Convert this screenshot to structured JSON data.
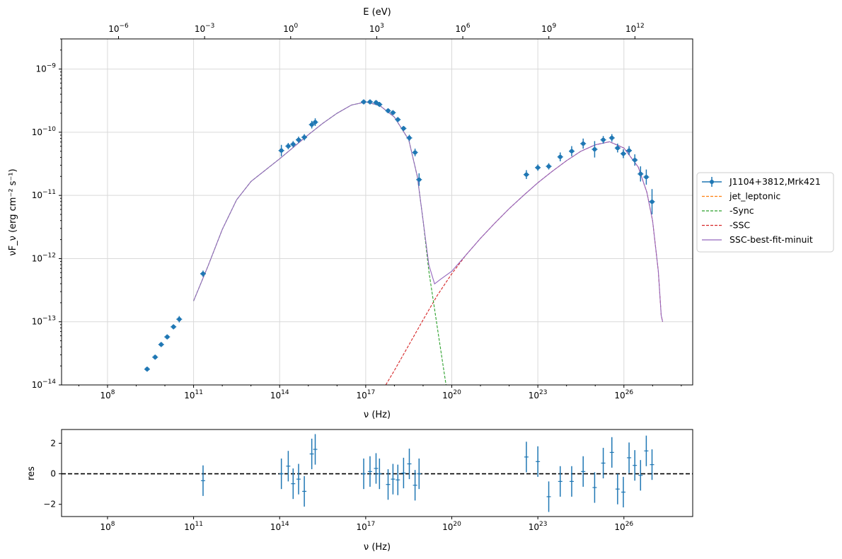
{
  "chart_data": [
    {
      "type": "line",
      "panel": "sed",
      "xlabel": "ν  (Hz)",
      "ylabel": "νF_ν  (erg cm⁻²  s⁻¹)",
      "top_xlabel": "E (eV)",
      "x_scale": "log",
      "y_scale": "log",
      "xlim": [
        2500000.0,
        2.5e+28
      ],
      "ylim": [
        1e-14,
        3e-09
      ],
      "grid": true,
      "legend_position": "outside-right",
      "x_ticks": [
        "10^8",
        "10^11",
        "10^14",
        "10^17",
        "10^20",
        "10^23",
        "10^26"
      ],
      "y_ticks": [
        "10^-14",
        "10^-13",
        "10^-12",
        "10^-11",
        "10^-10",
        "10^-9"
      ],
      "top_ticks": [
        "10^-6",
        "10^-3",
        "10^0",
        "10^3",
        "10^6",
        "10^9",
        "10^12"
      ],
      "legend": [
        {
          "label": "J1104+3812,Mrk421",
          "color": "#1f77b4",
          "style": "errorbar"
        },
        {
          "label": "jet_leptonic",
          "color": "#ff7f0e",
          "style": "dashed"
        },
        {
          "label": "  -Sync",
          "color": "#2ca02c",
          "style": "dashed"
        },
        {
          "label": "  -SSC",
          "color": "#d62728",
          "style": "dashed"
        },
        {
          "label": "SSC-best-fit-minuit",
          "color": "#9467bd",
          "style": "solid"
        }
      ],
      "series": [
        {
          "name": "J1104+3812,Mrk421",
          "color": "#1f77b4",
          "points": [
            [
              9.38,
              -13.75
            ],
            [
              9.66,
              -13.56
            ],
            [
              9.87,
              -13.36
            ],
            [
              10.08,
              -13.24
            ],
            [
              10.3,
              -13.08
            ],
            [
              10.5,
              -12.96
            ],
            [
              11.33,
              -12.24
            ],
            [
              14.06,
              -10.29
            ],
            [
              14.3,
              -10.22
            ],
            [
              14.47,
              -10.19
            ],
            [
              14.66,
              -10.12
            ],
            [
              14.86,
              -10.08
            ],
            [
              15.12,
              -9.88
            ],
            [
              15.24,
              -9.84
            ],
            [
              16.93,
              -9.52
            ],
            [
              17.15,
              -9.52
            ],
            [
              17.36,
              -9.53
            ],
            [
              17.48,
              -9.56
            ],
            [
              17.78,
              -9.66
            ],
            [
              17.95,
              -9.69
            ],
            [
              18.12,
              -9.8
            ],
            [
              18.32,
              -9.94
            ],
            [
              18.52,
              -10.09
            ],
            [
              18.72,
              -10.32
            ],
            [
              18.86,
              -10.75
            ],
            [
              22.6,
              -10.67
            ],
            [
              23.0,
              -10.56
            ],
            [
              23.38,
              -10.54
            ],
            [
              23.78,
              -10.39
            ],
            [
              24.18,
              -10.3
            ],
            [
              24.58,
              -10.18
            ],
            [
              24.98,
              -10.27
            ],
            [
              25.28,
              -10.12
            ],
            [
              25.58,
              -10.09
            ],
            [
              25.78,
              -10.25
            ],
            [
              25.98,
              -10.34
            ],
            [
              26.18,
              -10.29
            ],
            [
              26.38,
              -10.44
            ],
            [
              26.58,
              -10.66
            ],
            [
              26.78,
              -10.71
            ],
            [
              26.98,
              -11.1
            ]
          ],
          "y_err": [
            0.04,
            0.04,
            0.04,
            0.04,
            0.04,
            0.05,
            0.05,
            0.09,
            0.05,
            0.05,
            0.05,
            0.05,
            0.06,
            0.06,
            0.04,
            0.04,
            0.04,
            0.04,
            0.04,
            0.04,
            0.04,
            0.04,
            0.05,
            0.06,
            0.1,
            0.07,
            0.05,
            0.05,
            0.07,
            0.08,
            0.08,
            0.13,
            0.06,
            0.06,
            0.07,
            0.07,
            0.07,
            0.09,
            0.12,
            0.12,
            0.2
          ]
        },
        {
          "name": "  -Sync",
          "color": "#2ca02c",
          "points": [
            [
              11.0,
              -12.67
            ],
            [
              11.5,
              -12.12
            ],
            [
              12.0,
              -11.54
            ],
            [
              12.5,
              -11.07
            ],
            [
              13.0,
              -10.78
            ],
            [
              13.5,
              -10.6
            ],
            [
              14.0,
              -10.42
            ],
            [
              14.5,
              -10.23
            ],
            [
              15.0,
              -10.04
            ],
            [
              15.5,
              -9.86
            ],
            [
              16.0,
              -9.7
            ],
            [
              16.5,
              -9.57
            ],
            [
              17.0,
              -9.52
            ],
            [
              17.5,
              -9.58
            ],
            [
              18.0,
              -9.76
            ],
            [
              18.5,
              -10.12
            ],
            [
              18.8,
              -10.7
            ],
            [
              19.0,
              -11.4
            ],
            [
              19.2,
              -12.2
            ],
            [
              19.5,
              -13.1
            ],
            [
              19.7,
              -13.7
            ],
            [
              19.8,
              -14.0
            ]
          ]
        },
        {
          "name": "  -SSC",
          "color": "#d62728",
          "points": [
            [
              17.7,
              -14.0
            ],
            [
              18.0,
              -13.77
            ],
            [
              18.5,
              -13.37
            ],
            [
              19.0,
              -12.97
            ],
            [
              19.5,
              -12.58
            ],
            [
              20.0,
              -12.24
            ],
            [
              20.5,
              -11.94
            ],
            [
              21.0,
              -11.68
            ],
            [
              21.5,
              -11.44
            ],
            [
              22.0,
              -11.21
            ],
            [
              22.5,
              -11.0
            ],
            [
              23.0,
              -10.8
            ],
            [
              23.5,
              -10.62
            ],
            [
              24.0,
              -10.45
            ],
            [
              24.5,
              -10.3
            ],
            [
              25.0,
              -10.2
            ],
            [
              25.5,
              -10.15
            ],
            [
              26.0,
              -10.25
            ],
            [
              26.5,
              -10.55
            ],
            [
              26.8,
              -10.95
            ],
            [
              27.0,
              -11.4
            ],
            [
              27.2,
              -12.2
            ],
            [
              27.3,
              -12.9
            ],
            [
              27.35,
              -13.0
            ]
          ]
        },
        {
          "name": "SSC-best-fit-minuit",
          "color": "#9467bd",
          "points": [
            [
              11.0,
              -12.67
            ],
            [
              11.5,
              -12.12
            ],
            [
              12.0,
              -11.54
            ],
            [
              12.5,
              -11.07
            ],
            [
              13.0,
              -10.78
            ],
            [
              13.5,
              -10.6
            ],
            [
              14.0,
              -10.42
            ],
            [
              14.5,
              -10.23
            ],
            [
              15.0,
              -10.04
            ],
            [
              15.5,
              -9.86
            ],
            [
              16.0,
              -9.7
            ],
            [
              16.5,
              -9.57
            ],
            [
              17.0,
              -9.52
            ],
            [
              17.5,
              -9.58
            ],
            [
              18.0,
              -9.76
            ],
            [
              18.5,
              -10.12
            ],
            [
              18.8,
              -10.7
            ],
            [
              19.0,
              -11.4
            ],
            [
              19.2,
              -12.1
            ],
            [
              19.4,
              -12.4
            ],
            [
              19.6,
              -12.33
            ],
            [
              20.0,
              -12.2
            ],
            [
              20.5,
              -11.94
            ],
            [
              21.0,
              -11.68
            ],
            [
              21.5,
              -11.44
            ],
            [
              22.0,
              -11.21
            ],
            [
              22.5,
              -11.0
            ],
            [
              23.0,
              -10.8
            ],
            [
              23.5,
              -10.62
            ],
            [
              24.0,
              -10.45
            ],
            [
              24.5,
              -10.3
            ],
            [
              25.0,
              -10.2
            ],
            [
              25.5,
              -10.15
            ],
            [
              26.0,
              -10.25
            ],
            [
              26.5,
              -10.55
            ],
            [
              26.8,
              -10.95
            ],
            [
              27.0,
              -11.4
            ],
            [
              27.2,
              -12.2
            ],
            [
              27.3,
              -12.9
            ],
            [
              27.35,
              -13.0
            ]
          ]
        }
      ]
    },
    {
      "type": "scatter",
      "panel": "residuals",
      "xlabel": "ν  (Hz)",
      "ylabel": "res",
      "x_scale": "log",
      "xlim": [
        2500000.0,
        2.5e+28
      ],
      "ylim": [
        -2.8,
        2.9
      ],
      "y_ticks": [
        "−2",
        "0",
        "2"
      ],
      "x_ticks": [
        "10^8",
        "10^11",
        "10^14",
        "10^17",
        "10^20",
        "10^23",
        "10^26"
      ],
      "zero_line": true,
      "color": "#1f77b4",
      "x": [
        11.33,
        14.06,
        14.3,
        14.47,
        14.66,
        14.86,
        15.12,
        15.24,
        16.93,
        17.15,
        17.36,
        17.48,
        17.78,
        17.95,
        18.12,
        18.32,
        18.52,
        18.72,
        18.86,
        22.6,
        23.0,
        23.38,
        23.78,
        24.18,
        24.58,
        24.98,
        25.28,
        25.58,
        25.78,
        25.98,
        26.18,
        26.38,
        26.58,
        26.78,
        26.98
      ],
      "values": [
        -0.45,
        0.0,
        0.5,
        -0.65,
        -0.35,
        -1.15,
        1.3,
        1.6,
        0.0,
        0.15,
        0.35,
        0.0,
        -0.7,
        -0.35,
        -0.4,
        0.05,
        0.65,
        -0.75,
        0.0,
        1.1,
        0.8,
        -1.5,
        -0.5,
        -0.5,
        0.15,
        -0.9,
        0.7,
        1.4,
        -1.0,
        -1.2,
        1.05,
        0.55,
        -0.1,
        1.5,
        0.6
      ]
    }
  ]
}
